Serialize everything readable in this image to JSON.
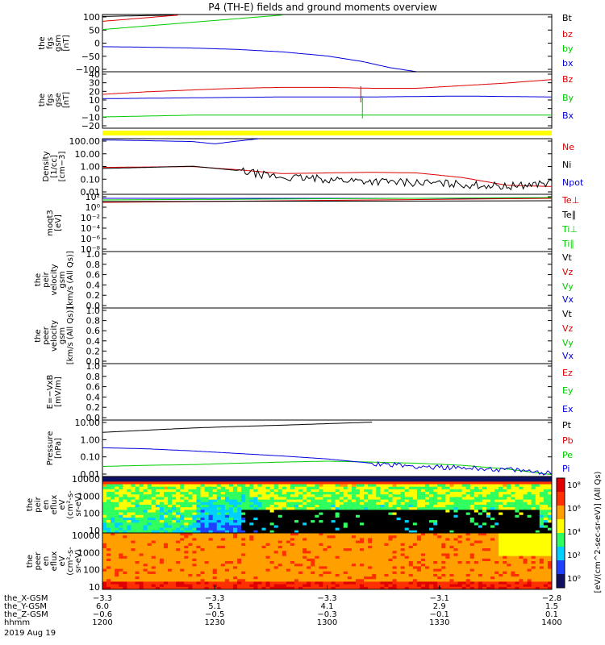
{
  "title": "P4 (TH-E) fields and ground moments overview",
  "colors": {
    "black": "#000000",
    "red": "#dd0000",
    "green": "#00cc00",
    "blue": "#0000dd",
    "yellow": "#ffff00",
    "cyan": "#00aaaa"
  },
  "chart_data": [
    {
      "type": "line",
      "id": "fgs_gsm",
      "ylabel": [
        "the",
        "fgs",
        "gsm",
        "[nT]"
      ],
      "yticks": [
        "100",
        "50",
        "0",
        "−50",
        "−100"
      ],
      "ylim": [
        -100,
        110
      ],
      "legend": [
        {
          "text": "Bt",
          "color": "black"
        },
        {
          "text": "bz",
          "color": "red"
        },
        {
          "text": "by",
          "color": "green"
        },
        {
          "text": "bx",
          "color": "blue"
        }
      ],
      "series": [
        {
          "name": "Bt",
          "color": "black",
          "x": [
            0,
            0.16
          ],
          "y": [
            103,
            108
          ]
        },
        {
          "name": "bz",
          "color": "red",
          "x": [
            0,
            0.17
          ],
          "y": [
            85,
            108
          ]
        },
        {
          "name": "by",
          "color": "green",
          "x": [
            0,
            0.4
          ],
          "y": [
            55,
            108
          ]
        },
        {
          "name": "bx",
          "color": "blue",
          "x": [
            0,
            0.1,
            0.2,
            0.3,
            0.4,
            0.5,
            0.58,
            0.64,
            0.7
          ],
          "y": [
            -8,
            -10,
            -13,
            -18,
            -27,
            -42,
            -63,
            -85,
            -100
          ]
        }
      ]
    },
    {
      "type": "line",
      "id": "fgs_gse",
      "ylabel": [
        "the",
        "fgs",
        "gse",
        "[nT]"
      ],
      "yticks": [
        "40",
        "30",
        "20",
        "10",
        "0",
        "−10",
        "−20"
      ],
      "ylim": [
        -25,
        40
      ],
      "legend": [
        {
          "text": "Bz",
          "color": "red"
        },
        {
          "text": "By",
          "color": "green"
        },
        {
          "text": "Bx",
          "color": "blue"
        }
      ],
      "series": [
        {
          "name": "Bz",
          "color": "red",
          "x": [
            0,
            0.1,
            0.2,
            0.3,
            0.4,
            0.5,
            0.6,
            0.7,
            0.8,
            0.9,
            1.0
          ],
          "y": [
            14,
            17,
            19,
            21,
            22,
            22,
            21,
            21,
            24,
            27,
            31
          ]
        },
        {
          "name": "By",
          "color": "green",
          "x": [
            0,
            0.1,
            0.2,
            0.3,
            0.4,
            0.5,
            0.6,
            0.7,
            0.8,
            0.9,
            1.0
          ],
          "y": [
            -12,
            -11,
            -10,
            -10,
            -10,
            -10,
            -10,
            -10,
            -10,
            -10,
            -10
          ]
        },
        {
          "name": "Bx",
          "color": "blue",
          "x": [
            0,
            0.2,
            0.4,
            0.6,
            0.8,
            1.0
          ],
          "y": [
            9,
            10,
            11,
            11,
            12,
            11
          ]
        }
      ]
    },
    {
      "type": "line",
      "id": "density",
      "ylabel": [
        "Density",
        "[1/cc]",
        "[cm−3]"
      ],
      "scale": "log",
      "yticks": [
        "100.00",
        "10.00",
        "1.00",
        "0.10",
        "0.01"
      ],
      "ylim": [
        0.01,
        200
      ],
      "legend": [
        {
          "text": "Ne",
          "color": "red"
        },
        {
          "text": "Ni",
          "color": "black"
        },
        {
          "text": "Npot",
          "color": "blue"
        }
      ],
      "series": [
        {
          "name": "Ne",
          "color": "red",
          "x": [
            0,
            0.1,
            0.2,
            0.3,
            0.4,
            0.5,
            0.6,
            0.7,
            0.8,
            0.9,
            1.0
          ],
          "y": [
            1.2,
            1.3,
            1.4,
            0.8,
            0.4,
            0.45,
            0.5,
            0.45,
            0.2,
            0.05,
            0.04
          ]
        },
        {
          "name": "Ni",
          "color": "black",
          "x": [
            0,
            0.1,
            0.2,
            0.3,
            0.35,
            0.4,
            0.5,
            0.6,
            0.7,
            0.8,
            0.9,
            1.0
          ],
          "y": [
            1.0,
            1.2,
            1.5,
            0.7,
            0.35,
            0.2,
            0.15,
            0.1,
            0.08,
            0.06,
            0.04,
            0.08
          ]
        },
        {
          "name": "Npot",
          "color": "blue",
          "x": [
            0,
            0.1,
            0.2,
            0.25,
            0.3,
            0.35
          ],
          "y": [
            160,
            140,
            120,
            80,
            130,
            200
          ]
        }
      ]
    },
    {
      "type": "line",
      "id": "temperature",
      "ylabel": [
        "moqt3",
        "[eV]"
      ],
      "scale": "log",
      "yticks": [
        "10²",
        "10⁰",
        "10⁻²",
        "10⁻⁴",
        "10⁻⁶",
        "10⁻⁸"
      ],
      "legend": [
        {
          "text": "Te⊥",
          "color": "red"
        },
        {
          "text": "Te∥",
          "color": "black"
        },
        {
          "text": "Ti⊥",
          "color": "green"
        },
        {
          "text": "Ti∥",
          "color": "green"
        }
      ],
      "series": []
    },
    {
      "type": "line",
      "id": "peir_velocity",
      "ylabel": [
        "the",
        "peir",
        "velocity",
        "gsm",
        "[km/s (All Qs)]"
      ],
      "yticks": [
        "1.0",
        "0.8",
        "0.6",
        "0.4",
        "0.2",
        "0.0"
      ],
      "legend": [
        {
          "text": "Vt",
          "color": "black"
        },
        {
          "text": "Vz",
          "color": "red"
        },
        {
          "text": "Vy",
          "color": "green"
        },
        {
          "text": "Vx",
          "color": "blue"
        }
      ],
      "series": []
    },
    {
      "type": "line",
      "id": "peer_velocity",
      "ylabel": [
        "the",
        "peer",
        "velocity",
        "gsm",
        "[km/s (All Qs)]"
      ],
      "yticks": [
        "1.0",
        "0.8",
        "0.6",
        "0.4",
        "0.2",
        "0.0"
      ],
      "legend": [
        {
          "text": "Vt",
          "color": "black"
        },
        {
          "text": "Vz",
          "color": "red"
        },
        {
          "text": "Vy",
          "color": "green"
        },
        {
          "text": "Vx",
          "color": "blue"
        }
      ],
      "series": []
    },
    {
      "type": "line",
      "id": "efield",
      "ylabel": [
        "E=−VxB",
        "[mV/m]"
      ],
      "yticks": [
        "1.0",
        "0.8",
        "0.6",
        "0.4",
        "0.2",
        "0.0"
      ],
      "legend": [
        {
          "text": "Ez",
          "color": "red"
        },
        {
          "text": "Ey",
          "color": "green"
        },
        {
          "text": "Ex",
          "color": "blue"
        }
      ],
      "series": []
    },
    {
      "type": "line",
      "id": "pressure",
      "ylabel": [
        "Pressure",
        "[nPa]"
      ],
      "scale": "log",
      "yticks": [
        "10.00",
        "1.00",
        "0.10",
        "0.01"
      ],
      "ylim": [
        0.003,
        25
      ],
      "legend": [
        {
          "text": "Pt",
          "color": "black"
        },
        {
          "text": "Pb",
          "color": "red"
        },
        {
          "text": "Pe",
          "color": "green"
        },
        {
          "text": "Pi",
          "color": "blue"
        }
      ],
      "series": [
        {
          "name": "Pt",
          "color": "black",
          "x": [
            0,
            0.1,
            0.2,
            0.3,
            0.4,
            0.5,
            0.6
          ],
          "y": [
            3.5,
            5,
            7,
            9,
            11,
            14,
            18
          ]
        },
        {
          "name": "Pe",
          "color": "green",
          "x": [
            0,
            0.1,
            0.2,
            0.3,
            0.4,
            0.5,
            0.6,
            0.7,
            0.8,
            0.9,
            1.0
          ],
          "y": [
            0.015,
            0.018,
            0.02,
            0.025,
            0.03,
            0.035,
            0.03,
            0.025,
            0.018,
            0.01,
            0.004
          ]
        },
        {
          "name": "Pi",
          "color": "blue",
          "x": [
            0,
            0.1,
            0.2,
            0.3,
            0.4,
            0.5,
            0.6,
            0.7,
            0.8,
            0.9,
            1.0
          ],
          "y": [
            0.3,
            0.25,
            0.18,
            0.12,
            0.08,
            0.05,
            0.025,
            0.015,
            0.012,
            0.009,
            0.005
          ]
        }
      ]
    },
    {
      "type": "heatmap",
      "id": "peir_en_eflux",
      "ylabel": [
        "the",
        "peir",
        "en",
        "eflux",
        "eV",
        "(cm²-s-",
        "sr-eV)"
      ],
      "yticks": [
        "10000",
        "1000",
        "100",
        "10"
      ]
    },
    {
      "type": "heatmap",
      "id": "peer_en_eflux",
      "ylabel": [
        "the",
        "peer",
        "en",
        "eflux",
        "eV",
        "(cm²-s-",
        "sr-eV)"
      ],
      "yticks": [
        "10000",
        "1000",
        "100",
        "10"
      ]
    }
  ],
  "colorbar": {
    "ticks": [
      "10⁸",
      "10⁶",
      "10⁴",
      "10²",
      "10⁰"
    ],
    "label": "[eV/(cm^2-sec-sr-eV)] (All Qs)"
  },
  "xaxis": {
    "rows": [
      {
        "label": "the_X-GSM",
        "values": [
          "−3.3",
          "−3.3",
          "−3.3",
          "−3.1",
          "−2.8"
        ]
      },
      {
        "label": "the_Y-GSM",
        "values": [
          "6.0",
          "5.1",
          "4.1",
          "2.9",
          "1.5"
        ]
      },
      {
        "label": "the_Z-GSM",
        "values": [
          "−0.6",
          "−0.5",
          "−0.3",
          "−0.1",
          "0.1"
        ]
      },
      {
        "label": "hhmm",
        "values": [
          "1200",
          "1230",
          "1300",
          "1330",
          "1400"
        ]
      }
    ],
    "date": "2019 Aug 19"
  }
}
